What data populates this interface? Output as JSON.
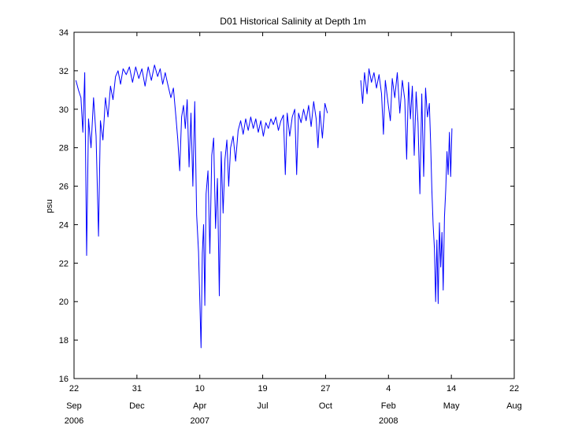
{
  "chart_data": {
    "type": "line",
    "title": "D01 Historical Salinity at Depth 1m",
    "ylabel": "psu",
    "xlabel": "",
    "ylim": [
      16,
      34
    ],
    "yticks": [
      16,
      18,
      20,
      22,
      24,
      26,
      28,
      30,
      32,
      34
    ],
    "xlim": [
      "2006-09-22",
      "2008-08-22"
    ],
    "xticks": [
      {
        "date": "2006-09-22",
        "day": "22",
        "month": "Sep",
        "year": "2006"
      },
      {
        "date": "2006-12-31",
        "day": "31",
        "month": "Dec",
        "year": ""
      },
      {
        "date": "2007-04-10",
        "day": "10",
        "month": "Apr",
        "year": "2007"
      },
      {
        "date": "2007-07-19",
        "day": "19",
        "month": "Jul",
        "year": ""
      },
      {
        "date": "2007-10-27",
        "day": "27",
        "month": "Oct",
        "year": ""
      },
      {
        "date": "2008-02-04",
        "day": "4",
        "month": "Feb",
        "year": "2008"
      },
      {
        "date": "2008-05-14",
        "day": "14",
        "month": "May",
        "year": ""
      },
      {
        "date": "2008-08-22",
        "day": "22",
        "month": "Aug",
        "year": ""
      }
    ],
    "grid": false,
    "line_color": "#0000ff",
    "series": [
      {
        "points": [
          [
            "2006-09-25",
            31.5
          ],
          [
            "2006-09-29",
            31.0
          ],
          [
            "2006-10-03",
            30.6
          ],
          [
            "2006-10-06",
            28.8
          ],
          [
            "2006-10-09",
            31.9
          ],
          [
            "2006-10-12",
            22.4
          ],
          [
            "2006-10-15",
            29.5
          ],
          [
            "2006-10-19",
            28.0
          ],
          [
            "2006-10-23",
            30.6
          ],
          [
            "2006-10-27",
            28.6
          ],
          [
            "2006-10-31",
            23.4
          ],
          [
            "2006-11-03",
            29.4
          ],
          [
            "2006-11-07",
            28.4
          ],
          [
            "2006-11-11",
            30.6
          ],
          [
            "2006-11-15",
            29.6
          ],
          [
            "2006-11-19",
            31.2
          ],
          [
            "2006-11-23",
            30.5
          ],
          [
            "2006-11-27",
            31.7
          ],
          [
            "2006-12-01",
            32.0
          ],
          [
            "2006-12-05",
            31.3
          ],
          [
            "2006-12-09",
            32.1
          ],
          [
            "2006-12-14",
            31.8
          ],
          [
            "2006-12-19",
            32.2
          ],
          [
            "2006-12-24",
            31.4
          ],
          [
            "2006-12-29",
            32.2
          ],
          [
            "2007-01-03",
            31.6
          ],
          [
            "2007-01-08",
            32.1
          ],
          [
            "2007-01-13",
            31.2
          ],
          [
            "2007-01-18",
            32.2
          ],
          [
            "2007-01-23",
            31.5
          ],
          [
            "2007-01-28",
            32.3
          ],
          [
            "2007-02-02",
            31.7
          ],
          [
            "2007-02-06",
            32.1
          ],
          [
            "2007-02-10",
            31.3
          ],
          [
            "2007-02-14",
            31.9
          ],
          [
            "2007-02-18",
            31.3
          ],
          [
            "2007-02-23",
            30.6
          ],
          [
            "2007-02-27",
            31.1
          ],
          [
            "2007-03-03",
            29.6
          ],
          [
            "2007-03-06",
            28.4
          ],
          [
            "2007-03-09",
            26.8
          ],
          [
            "2007-03-12",
            29.6
          ],
          [
            "2007-03-15",
            30.2
          ],
          [
            "2007-03-18",
            29.0
          ],
          [
            "2007-03-21",
            30.5
          ],
          [
            "2007-03-24",
            27.0
          ],
          [
            "2007-03-27",
            29.8
          ],
          [
            "2007-03-30",
            26.0
          ],
          [
            "2007-04-02",
            30.4
          ],
          [
            "2007-04-05",
            24.5
          ],
          [
            "2007-04-08",
            22.6
          ],
          [
            "2007-04-10",
            20.1
          ],
          [
            "2007-04-12",
            17.6
          ],
          [
            "2007-04-14",
            22.5
          ],
          [
            "2007-04-16",
            24.0
          ],
          [
            "2007-04-18",
            19.8
          ],
          [
            "2007-04-20",
            25.6
          ],
          [
            "2007-04-23",
            26.8
          ],
          [
            "2007-04-26",
            22.5
          ],
          [
            "2007-04-29",
            27.6
          ],
          [
            "2007-05-02",
            28.5
          ],
          [
            "2007-05-05",
            23.8
          ],
          [
            "2007-05-08",
            26.4
          ],
          [
            "2007-05-11",
            20.3
          ],
          [
            "2007-05-14",
            27.8
          ],
          [
            "2007-05-17",
            24.6
          ],
          [
            "2007-05-20",
            27.4
          ],
          [
            "2007-05-23",
            28.4
          ],
          [
            "2007-05-26",
            26.0
          ],
          [
            "2007-05-29",
            28.0
          ],
          [
            "2007-06-02",
            28.6
          ],
          [
            "2007-06-06",
            27.3
          ],
          [
            "2007-06-10",
            28.9
          ],
          [
            "2007-06-14",
            29.4
          ],
          [
            "2007-06-18",
            28.7
          ],
          [
            "2007-06-22",
            29.5
          ],
          [
            "2007-06-26",
            28.9
          ],
          [
            "2007-06-30",
            29.6
          ],
          [
            "2007-07-04",
            29.0
          ],
          [
            "2007-07-08",
            29.5
          ],
          [
            "2007-07-12",
            28.8
          ],
          [
            "2007-07-16",
            29.4
          ],
          [
            "2007-07-20",
            28.6
          ],
          [
            "2007-07-24",
            29.3
          ],
          [
            "2007-07-28",
            29.0
          ],
          [
            "2007-08-01",
            29.5
          ],
          [
            "2007-08-05",
            29.2
          ],
          [
            "2007-08-09",
            29.6
          ],
          [
            "2007-08-13",
            28.9
          ],
          [
            "2007-08-17",
            29.4
          ],
          [
            "2007-08-21",
            29.7
          ],
          [
            "2007-08-24",
            26.6
          ],
          [
            "2007-08-27",
            29.8
          ],
          [
            "2007-08-31",
            28.6
          ],
          [
            "2007-09-04",
            29.6
          ],
          [
            "2007-09-08",
            30.0
          ],
          [
            "2007-09-11",
            26.6
          ],
          [
            "2007-09-14",
            29.8
          ],
          [
            "2007-09-18",
            29.3
          ],
          [
            "2007-09-22",
            30.0
          ],
          [
            "2007-09-26",
            29.4
          ],
          [
            "2007-09-30",
            30.2
          ],
          [
            "2007-10-04",
            29.1
          ],
          [
            "2007-10-08",
            30.4
          ],
          [
            "2007-10-12",
            29.5
          ],
          [
            "2007-10-15",
            28.0
          ],
          [
            "2007-10-18",
            29.9
          ],
          [
            "2007-10-22",
            28.5
          ],
          [
            "2007-10-26",
            30.3
          ],
          [
            "2007-10-30",
            29.8
          ],
          null,
          [
            "2007-12-22",
            31.5
          ],
          [
            "2007-12-25",
            30.3
          ],
          [
            "2007-12-28",
            31.9
          ],
          [
            "2008-01-01",
            30.8
          ],
          [
            "2008-01-04",
            32.1
          ],
          [
            "2008-01-08",
            31.4
          ],
          [
            "2008-01-12",
            31.9
          ],
          [
            "2008-01-16",
            31.1
          ],
          [
            "2008-01-20",
            31.8
          ],
          [
            "2008-01-24",
            30.8
          ],
          [
            "2008-01-27",
            28.7
          ],
          [
            "2008-01-30",
            31.5
          ],
          [
            "2008-02-03",
            30.4
          ],
          [
            "2008-02-07",
            29.4
          ],
          [
            "2008-02-10",
            31.6
          ],
          [
            "2008-02-14",
            30.6
          ],
          [
            "2008-02-18",
            31.9
          ],
          [
            "2008-02-22",
            29.8
          ],
          [
            "2008-02-26",
            31.5
          ],
          [
            "2008-03-01",
            30.5
          ],
          [
            "2008-03-04",
            27.4
          ],
          [
            "2008-03-07",
            31.4
          ],
          [
            "2008-03-10",
            29.5
          ],
          [
            "2008-03-13",
            31.2
          ],
          [
            "2008-03-16",
            27.6
          ],
          [
            "2008-03-19",
            30.9
          ],
          [
            "2008-03-22",
            29.3
          ],
          [
            "2008-03-25",
            25.6
          ],
          [
            "2008-03-28",
            30.8
          ],
          [
            "2008-03-31",
            26.5
          ],
          [
            "2008-04-03",
            31.1
          ],
          [
            "2008-04-06",
            29.6
          ],
          [
            "2008-04-09",
            30.3
          ],
          [
            "2008-04-11",
            28.3
          ],
          [
            "2008-04-13",
            25.8
          ],
          [
            "2008-04-15",
            24.0
          ],
          [
            "2008-04-17",
            22.8
          ],
          [
            "2008-04-19",
            20.0
          ],
          [
            "2008-04-21",
            23.2
          ],
          [
            "2008-04-23",
            19.9
          ],
          [
            "2008-04-25",
            24.1
          ],
          [
            "2008-04-27",
            21.8
          ],
          [
            "2008-04-29",
            23.6
          ],
          [
            "2008-05-01",
            20.6
          ],
          [
            "2008-05-03",
            24.4
          ],
          [
            "2008-05-05",
            25.8
          ],
          [
            "2008-05-07",
            27.8
          ],
          [
            "2008-05-09",
            26.6
          ],
          [
            "2008-05-11",
            28.8
          ],
          [
            "2008-05-13",
            26.5
          ],
          [
            "2008-05-15",
            29.0
          ]
        ]
      }
    ]
  }
}
